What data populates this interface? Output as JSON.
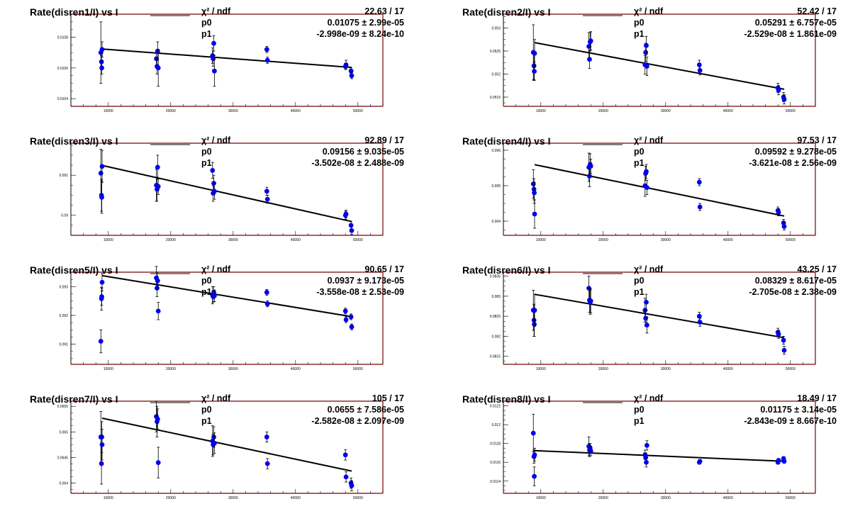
{
  "chart_data": [
    {
      "type": "scatter",
      "title": "Rate(disren1/I) vs I",
      "stats": {
        "chi2_label": "χ² / ndf",
        "p0_label": "p0",
        "p1_label": "p1",
        "chi2_value": "22.63 / 17",
        "p0_value": "0.01075 ± 2.99e-05",
        "p1_value": "-2.998e-09 ± 8.24e-10"
      },
      "xlim": [
        4000,
        54000
      ],
      "ylim": [
        0.01035,
        0.01095
      ],
      "x_ticks": [
        {
          "v": 10000,
          "label": "10000"
        },
        {
          "v": 20000,
          "label": "20000"
        },
        {
          "v": 30000,
          "label": "30000"
        },
        {
          "v": 40000,
          "label": "40000"
        },
        {
          "v": 50000,
          "label": "50000"
        }
      ],
      "y_ticks": [
        {
          "v": 0.0104,
          "label": "0.0104"
        },
        {
          "v": 0.0106,
          "label": "0.0106"
        },
        {
          "v": 0.0108,
          "label": "0.0108"
        }
      ],
      "fit_x": [
        9000,
        49000
      ],
      "points": [
        [
          8800,
          0.0107,
          0.0002
        ],
        [
          8900,
          0.01064,
          4e-05
        ],
        [
          8950,
          0.0106,
          4e-05
        ],
        [
          9000,
          0.01072,
          5e-05
        ],
        [
          17700,
          0.01066,
          5e-05
        ],
        [
          17800,
          0.01061,
          5e-05
        ],
        [
          17900,
          0.01071,
          6e-05
        ],
        [
          18000,
          0.0106,
          0.00012
        ],
        [
          26700,
          0.01068,
          5e-05
        ],
        [
          26800,
          0.01066,
          5e-05
        ],
        [
          26900,
          0.01076,
          5e-05
        ],
        [
          27000,
          0.01058,
          0.0001
        ],
        [
          35400,
          0.01072,
          2e-05
        ],
        [
          35500,
          0.01065,
          2e-05
        ],
        [
          48000,
          0.01061,
          2e-05
        ],
        [
          48100,
          0.01062,
          3e-05
        ],
        [
          48900,
          0.01058,
          2e-05
        ],
        [
          49000,
          0.01055,
          2e-05
        ]
      ]
    },
    {
      "type": "scatter",
      "title": "Rate(disren2/I) vs I",
      "stats": {
        "chi2_label": "χ² / ndf",
        "p0_label": "p0",
        "p1_label": "p1",
        "chi2_value": "52.42 / 17",
        "p0_value": "0.05291 ± 6.757e-05",
        "p1_value": "-2.529e-08 ± 1.861e-09"
      },
      "xlim": [
        4000,
        54000
      ],
      "ylim": [
        0.0513,
        0.0533
      ],
      "x_ticks": [
        {
          "v": 10000,
          "label": "10000"
        },
        {
          "v": 20000,
          "label": "20000"
        },
        {
          "v": 30000,
          "label": "30000"
        },
        {
          "v": 40000,
          "label": "40000"
        },
        {
          "v": 50000,
          "label": "50000"
        }
      ],
      "y_ticks": [
        {
          "v": 0.0515,
          "label": "0.0515"
        },
        {
          "v": 0.052,
          "label": "0.052"
        },
        {
          "v": 0.0525,
          "label": "0.0525"
        },
        {
          "v": 0.053,
          "label": "0.053"
        }
      ],
      "fit_x": [
        9000,
        49000
      ],
      "points": [
        [
          8800,
          0.05247,
          0.0006
        ],
        [
          8900,
          0.05218,
          0.0003
        ],
        [
          8950,
          0.05206,
          0.0002
        ],
        [
          9000,
          0.05245,
          0.0003
        ],
        [
          17700,
          0.0526,
          0.0003
        ],
        [
          17800,
          0.05232,
          0.0002
        ],
        [
          17900,
          0.0527,
          0.0002
        ],
        [
          18000,
          0.05272,
          0.0002
        ],
        [
          26700,
          0.0522,
          0.0002
        ],
        [
          26800,
          0.05247,
          0.0002
        ],
        [
          26900,
          0.05262,
          0.0002
        ],
        [
          27000,
          0.05217,
          0.0002
        ],
        [
          35400,
          0.0522,
          0.0001
        ],
        [
          35500,
          0.05208,
          0.0001
        ],
        [
          48000,
          0.0517,
          0.0001
        ],
        [
          48100,
          0.05165,
          0.0001
        ],
        [
          48900,
          0.0515,
          0.0001
        ],
        [
          49000,
          0.05145,
          0.0001
        ]
      ]
    },
    {
      "type": "scatter",
      "title": "Rate(disren3/I) vs I",
      "stats": {
        "chi2_label": "χ² / ndf",
        "p0_label": "p0",
        "p1_label": "p1",
        "chi2_value": "92.89 / 17",
        "p0_value": "0.09156 ± 9.035e-05",
        "p1_value": "-3.502e-08 ± 2.488e-09"
      },
      "xlim": [
        4000,
        54000
      ],
      "ylim": [
        0.0895,
        0.0918
      ],
      "x_ticks": [
        {
          "v": 10000,
          "label": "10000"
        },
        {
          "v": 20000,
          "label": "20000"
        },
        {
          "v": 30000,
          "label": "30000"
        },
        {
          "v": 40000,
          "label": "40000"
        },
        {
          "v": 50000,
          "label": "50000"
        }
      ],
      "y_ticks": [
        {
          "v": 0.09,
          "label": "0.09"
        },
        {
          "v": 0.091,
          "label": "0.091"
        }
      ],
      "fit_x": [
        9000,
        49000
      ],
      "points": [
        [
          8800,
          0.09105,
          0.0006
        ],
        [
          8900,
          0.0905,
          0.0004
        ],
        [
          8950,
          0.09045,
          0.0004
        ],
        [
          9000,
          0.09122,
          0.0004
        ],
        [
          17700,
          0.09075,
          0.0004
        ],
        [
          17800,
          0.09065,
          0.0003
        ],
        [
          17900,
          0.0912,
          0.0003
        ],
        [
          18000,
          0.09072,
          0.0002
        ],
        [
          26700,
          0.09112,
          0.0002
        ],
        [
          26800,
          0.09055,
          0.0002
        ],
        [
          26900,
          0.0908,
          0.0002
        ],
        [
          27000,
          0.0906,
          0.0002
        ],
        [
          35400,
          0.0906,
          0.0001
        ],
        [
          35500,
          0.0904,
          0.0001
        ],
        [
          48000,
          0.09,
          0.0001
        ],
        [
          48100,
          0.09003,
          0.0001
        ],
        [
          48900,
          0.08975,
          0.0001
        ],
        [
          49000,
          0.08962,
          0.0001
        ]
      ]
    },
    {
      "type": "scatter",
      "title": "Rate(disren4/I) vs I",
      "stats": {
        "chi2_label": "χ² / ndf",
        "p0_label": "p0",
        "p1_label": "p1",
        "chi2_value": "97.53 / 17",
        "p0_value": "0.09592 ± 9.278e-05",
        "p1_value": "-3.621e-08 ± 2.56e-09"
      },
      "xlim": [
        4000,
        54000
      ],
      "ylim": [
        0.0936,
        0.0962
      ],
      "x_ticks": [
        {
          "v": 10000,
          "label": "10000"
        },
        {
          "v": 20000,
          "label": "20000"
        },
        {
          "v": 30000,
          "label": "30000"
        },
        {
          "v": 40000,
          "label": "40000"
        },
        {
          "v": 50000,
          "label": "50000"
        }
      ],
      "y_ticks": [
        {
          "v": 0.094,
          "label": "0.094"
        },
        {
          "v": 0.095,
          "label": "0.095"
        },
        {
          "v": 0.096,
          "label": "0.096"
        }
      ],
      "fit_x": [
        9000,
        49000
      ],
      "points": [
        [
          8800,
          0.09505,
          0.0004
        ],
        [
          8900,
          0.0949,
          0.0003
        ],
        [
          8950,
          0.0948,
          0.0003
        ],
        [
          9000,
          0.0942,
          0.0004
        ],
        [
          17700,
          0.09552,
          0.0004
        ],
        [
          17800,
          0.09527,
          0.0003
        ],
        [
          17900,
          0.0956,
          0.0003
        ],
        [
          18000,
          0.09555,
          0.0002
        ],
        [
          26700,
          0.095,
          0.0003
        ],
        [
          26800,
          0.09535,
          0.0002
        ],
        [
          26900,
          0.0954,
          0.0002
        ],
        [
          27000,
          0.09495,
          0.0002
        ],
        [
          35400,
          0.0951,
          0.0001
        ],
        [
          35500,
          0.0944,
          0.0001
        ],
        [
          48000,
          0.0943,
          0.0001
        ],
        [
          48100,
          0.09425,
          0.0001
        ],
        [
          48900,
          0.09395,
          0.0001
        ],
        [
          49000,
          0.09385,
          0.0001
        ]
      ]
    },
    {
      "type": "scatter",
      "title": "Rate(disren5/I) vs I",
      "stats": {
        "chi2_label": "χ² / ndf",
        "p0_label": "p0",
        "p1_label": "p1",
        "chi2_value": "90.65 / 17",
        "p0_value": "0.0937 ± 9.173e-05",
        "p1_value": "-3.558e-08 ± 2.53e-09"
      },
      "xlim": [
        4000,
        54000
      ],
      "ylim": [
        0.0903,
        0.0935
      ],
      "x_ticks": [
        {
          "v": 10000,
          "label": "10000"
        },
        {
          "v": 20000,
          "label": "20000"
        },
        {
          "v": 30000,
          "label": "30000"
        },
        {
          "v": 40000,
          "label": "40000"
        },
        {
          "v": 50000,
          "label": "50000"
        }
      ],
      "y_ticks": [
        {
          "v": 0.091,
          "label": "0.091"
        },
        {
          "v": 0.092,
          "label": "0.092"
        },
        {
          "v": 0.093,
          "label": "0.093"
        }
      ],
      "fit_x": [
        9000,
        49000
      ],
      "points": [
        [
          8800,
          0.0911,
          0.0004
        ],
        [
          8900,
          0.09258,
          0.0004
        ],
        [
          8950,
          0.09265,
          0.0003
        ],
        [
          9000,
          0.09315,
          0.0003
        ],
        [
          17700,
          0.0933,
          0.0004
        ],
        [
          17800,
          0.09295,
          0.0003
        ],
        [
          17900,
          0.0932,
          0.0003
        ],
        [
          18000,
          0.09215,
          0.0003
        ],
        [
          26700,
          0.0927,
          0.0003
        ],
        [
          26800,
          0.09265,
          0.0002
        ],
        [
          26900,
          0.0928,
          0.0002
        ],
        [
          27000,
          0.09268,
          0.0002
        ],
        [
          35400,
          0.0928,
          0.0001
        ],
        [
          35500,
          0.0924,
          0.0001
        ],
        [
          48000,
          0.09215,
          0.0001
        ],
        [
          48100,
          0.09185,
          0.0001
        ],
        [
          48900,
          0.09195,
          0.0001
        ],
        [
          49000,
          0.0916,
          0.0001
        ]
      ]
    },
    {
      "type": "scatter",
      "title": "Rate(disren6/I) vs I",
      "stats": {
        "chi2_label": "χ² / ndf",
        "p0_label": "p0",
        "p1_label": "p1",
        "chi2_value": "43.25 / 17",
        "p0_value": "0.08329 ± 8.617e-05",
        "p1_value": "-2.705e-08 ± 2.38e-09"
      },
      "xlim": [
        4000,
        54000
      ],
      "ylim": [
        0.0813,
        0.0836
      ],
      "x_ticks": [
        {
          "v": 10000,
          "label": "10000"
        },
        {
          "v": 20000,
          "label": "20000"
        },
        {
          "v": 30000,
          "label": "30000"
        },
        {
          "v": 40000,
          "label": "40000"
        },
        {
          "v": 50000,
          "label": "50000"
        }
      ],
      "y_ticks": [
        {
          "v": 0.0815,
          "label": "0.0815"
        },
        {
          "v": 0.082,
          "label": "0.082"
        },
        {
          "v": 0.0825,
          "label": "0.0825"
        },
        {
          "v": 0.083,
          "label": "0.083"
        },
        {
          "v": 0.0835,
          "label": "0.0835"
        }
      ],
      "fit_x": [
        9000,
        49000
      ],
      "points": [
        [
          8800,
          0.08265,
          0.0005
        ],
        [
          8900,
          0.0824,
          0.0004
        ],
        [
          8950,
          0.0823,
          0.0003
        ],
        [
          9000,
          0.08265,
          0.0004
        ],
        [
          17700,
          0.0832,
          0.0003
        ],
        [
          17800,
          0.0829,
          0.0003
        ],
        [
          17900,
          0.08285,
          0.0003
        ],
        [
          18000,
          0.08288,
          0.0003
        ],
        [
          26700,
          0.08265,
          0.0003
        ],
        [
          26800,
          0.08245,
          0.0002
        ],
        [
          26900,
          0.08285,
          0.0002
        ],
        [
          27000,
          0.08228,
          0.0002
        ],
        [
          35400,
          0.0825,
          0.0001
        ],
        [
          35500,
          0.08235,
          0.0001
        ],
        [
          48000,
          0.0821,
          0.0001
        ],
        [
          48100,
          0.08205,
          0.0001
        ],
        [
          48900,
          0.0819,
          0.0001
        ],
        [
          49000,
          0.08165,
          0.0001
        ]
      ]
    },
    {
      "type": "scatter",
      "title": "Rate(disren7/I) vs I",
      "stats": {
        "chi2_label": "χ² / ndf",
        "p0_label": "p0",
        "p1_label": "p1",
        "chi2_value": "105 / 17",
        "p0_value": "0.0655 ± 7.586e-05",
        "p1_value": "-2.582e-08 ± 2.097e-09"
      },
      "xlim": [
        4000,
        54000
      ],
      "ylim": [
        0.0638,
        0.0656
      ],
      "x_ticks": [
        {
          "v": 10000,
          "label": "10000"
        },
        {
          "v": 20000,
          "label": "20000"
        },
        {
          "v": 30000,
          "label": "30000"
        },
        {
          "v": 40000,
          "label": "40000"
        },
        {
          "v": 50000,
          "label": "50000"
        }
      ],
      "y_ticks": [
        {
          "v": 0.064,
          "label": "0.064"
        },
        {
          "v": 0.0645,
          "label": "0.0645"
        },
        {
          "v": 0.065,
          "label": "0.065"
        },
        {
          "v": 0.0655,
          "label": "0.0655"
        }
      ],
      "fit_x": [
        9000,
        49000
      ],
      "points": [
        [
          8800,
          0.0649,
          0.0005
        ],
        [
          8900,
          0.06438,
          0.0004
        ],
        [
          8950,
          0.0649,
          0.0003
        ],
        [
          9000,
          0.06475,
          0.0003
        ],
        [
          17700,
          0.0653,
          0.0003
        ],
        [
          17800,
          0.0652,
          0.0003
        ],
        [
          17900,
          0.06525,
          0.0002
        ],
        [
          18000,
          0.0644,
          0.0003
        ],
        [
          26700,
          0.06482,
          0.0003
        ],
        [
          26800,
          0.06475,
          0.0002
        ],
        [
          26900,
          0.0649,
          0.0002
        ],
        [
          27000,
          0.06478,
          0.0002
        ],
        [
          35400,
          0.0649,
          0.0001
        ],
        [
          35500,
          0.06438,
          0.0001
        ],
        [
          48000,
          0.06455,
          0.0001
        ],
        [
          48100,
          0.06412,
          0.0001
        ],
        [
          48900,
          0.064,
          0.0001
        ],
        [
          49000,
          0.06395,
          0.0001
        ]
      ]
    },
    {
      "type": "scatter",
      "title": "Rate(disren8/I) vs I",
      "stats": {
        "chi2_label": "χ² / ndf",
        "p0_label": "p0",
        "p1_label": "p1",
        "chi2_value": "18.49 / 17",
        "p0_value": "0.01175 ± 3.14e-05",
        "p1_value": "-2.843e-09 ± 8.667e-10"
      },
      "xlim": [
        4000,
        54000
      ],
      "ylim": [
        0.01127,
        0.01225
      ],
      "x_ticks": [
        {
          "v": 10000,
          "label": "10000"
        },
        {
          "v": 20000,
          "label": "20000"
        },
        {
          "v": 30000,
          "label": "30000"
        },
        {
          "v": 40000,
          "label": "40000"
        },
        {
          "v": 50000,
          "label": "50000"
        }
      ],
      "y_ticks": [
        {
          "v": 0.0114,
          "label": "0.0114"
        },
        {
          "v": 0.0116,
          "label": "0.0116"
        },
        {
          "v": 0.0118,
          "label": "0.0118"
        },
        {
          "v": 0.012,
          "label": "0.012"
        },
        {
          "v": 0.0122,
          "label": "0.0122"
        }
      ],
      "fit_x": [
        9000,
        49000
      ],
      "points": [
        [
          8800,
          0.01191,
          0.0002
        ],
        [
          8900,
          0.01166,
          7e-05
        ],
        [
          8950,
          0.01145,
          0.0001
        ],
        [
          9000,
          0.01168,
          7e-05
        ],
        [
          17700,
          0.01177,
          0.0001
        ],
        [
          17800,
          0.01173,
          7e-05
        ],
        [
          17900,
          0.01175,
          5e-05
        ],
        [
          18000,
          0.01172,
          5e-05
        ],
        [
          26700,
          0.01168,
          5e-05
        ],
        [
          26800,
          0.01165,
          5e-05
        ],
        [
          26900,
          0.0116,
          5e-05
        ],
        [
          27000,
          0.01178,
          5e-05
        ],
        [
          35400,
          0.0116,
          2e-05
        ],
        [
          35500,
          0.01161,
          2e-05
        ],
        [
          48000,
          0.0116,
          2e-05
        ],
        [
          48100,
          0.01162,
          2e-05
        ],
        [
          48900,
          0.01164,
          2e-05
        ],
        [
          49000,
          0.01161,
          2e-05
        ]
      ]
    }
  ],
  "colors": {
    "marker": "#0000ee",
    "axes_frame": "#7a0000",
    "fit_line": "#000000",
    "errorbar": "#000000"
  }
}
